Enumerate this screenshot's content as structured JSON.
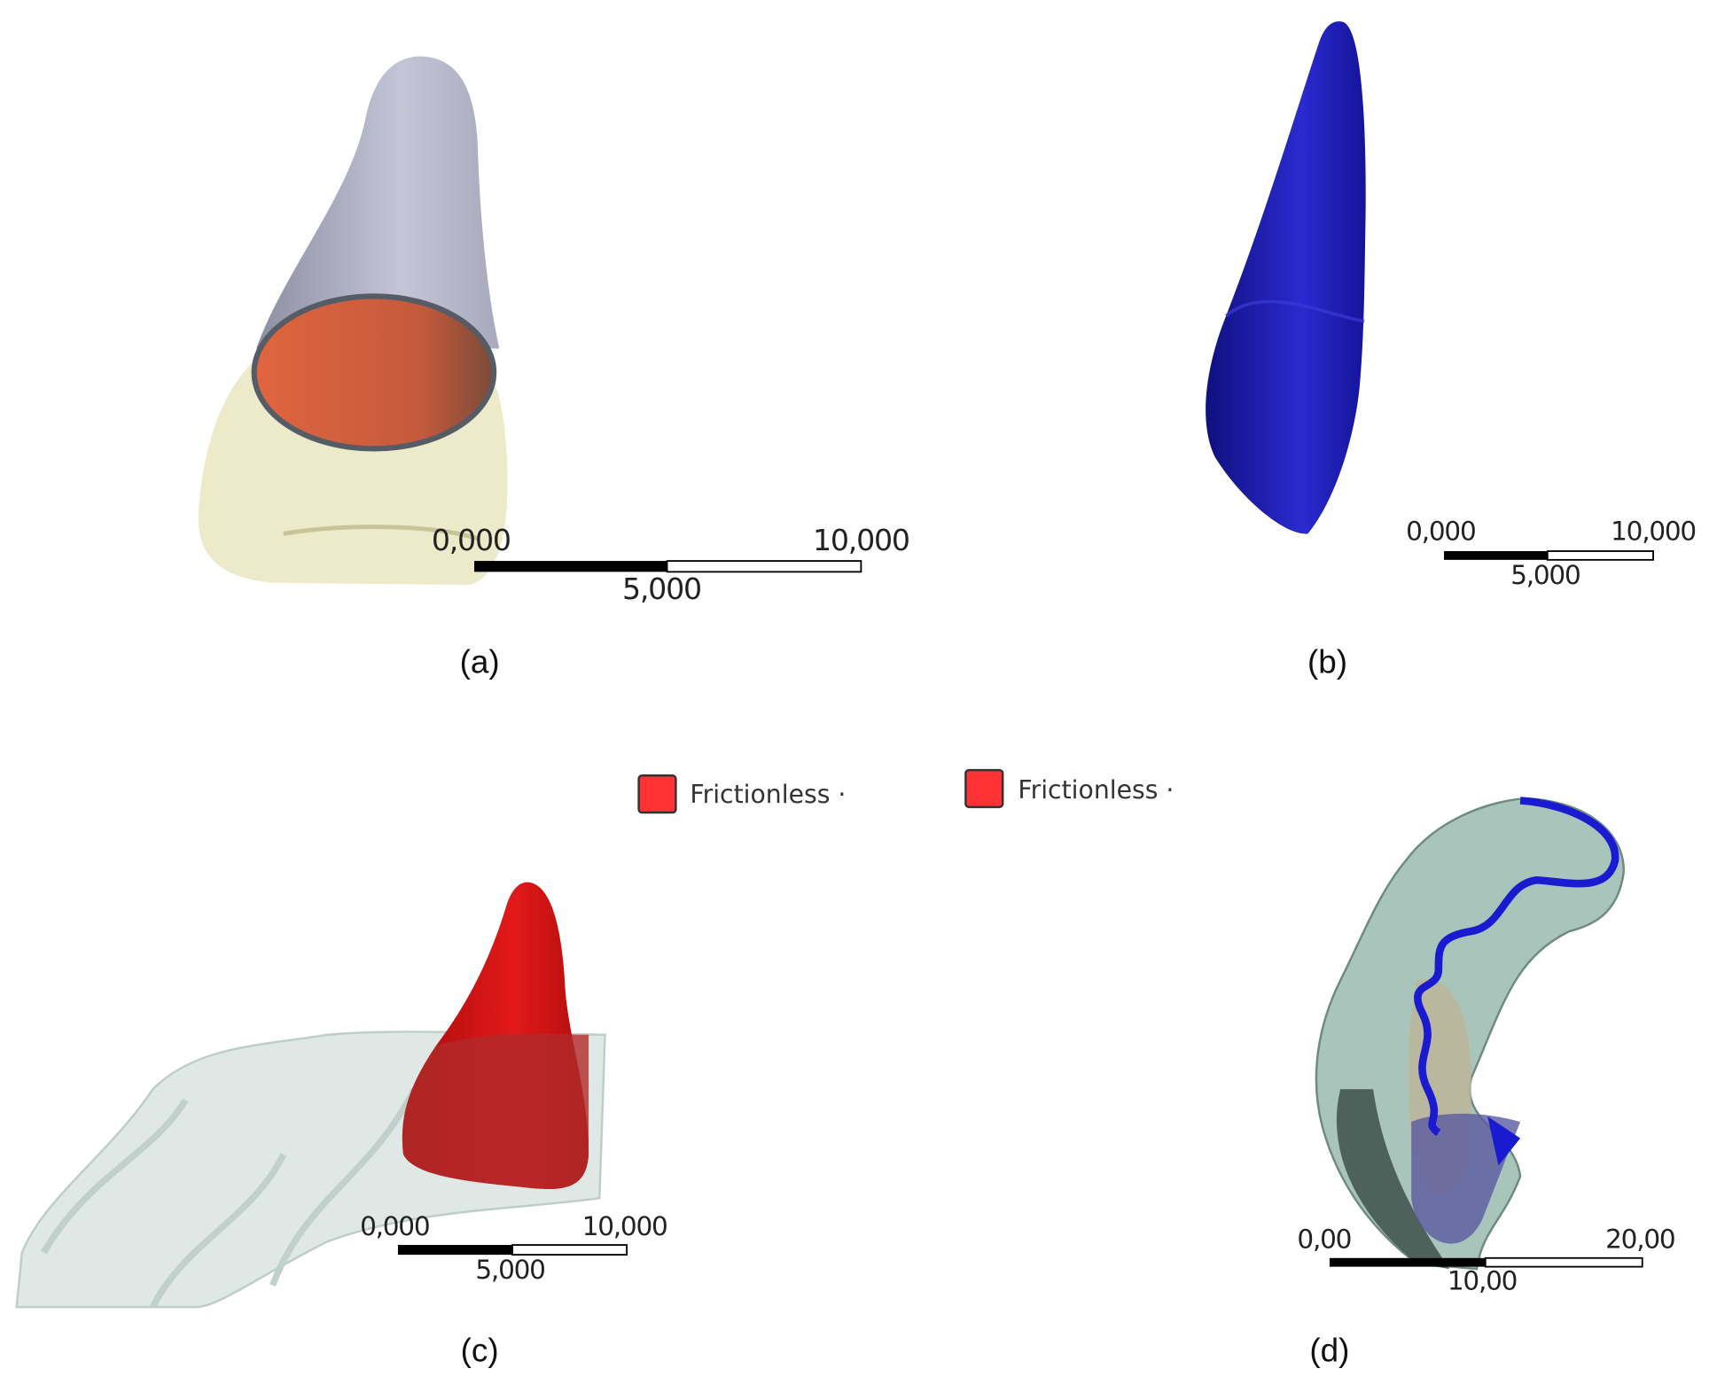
{
  "panels": [
    {
      "caption": "(a)",
      "scale": {
        "min": "0,000",
        "mid": "5,000",
        "max": "10,000"
      }
    },
    {
      "caption": "(b)",
      "scale": {
        "min": "0,000",
        "mid": "5,000",
        "max": "10,000"
      }
    },
    {
      "caption": "(c)",
      "scale": {
        "min": "0,000",
        "mid": "5,000",
        "max": "10,000"
      }
    },
    {
      "caption": "(d)",
      "scale": {
        "min": "0,00",
        "mid": "10,00",
        "max": "20,00"
      }
    }
  ],
  "legend": [
    {
      "label": "Frictionless ·",
      "color": "#ff3333"
    },
    {
      "label": "Frictionless ·",
      "color": "#ff3333"
    }
  ],
  "colors": {
    "root_gray": "#b8b9cc",
    "contact_orange": "#d9603e",
    "crown_cream": "#ebe8c4",
    "tooth_blue": "#1515b0",
    "tooth_red": "#c81414",
    "aligner_green": "#a9c4ba"
  }
}
